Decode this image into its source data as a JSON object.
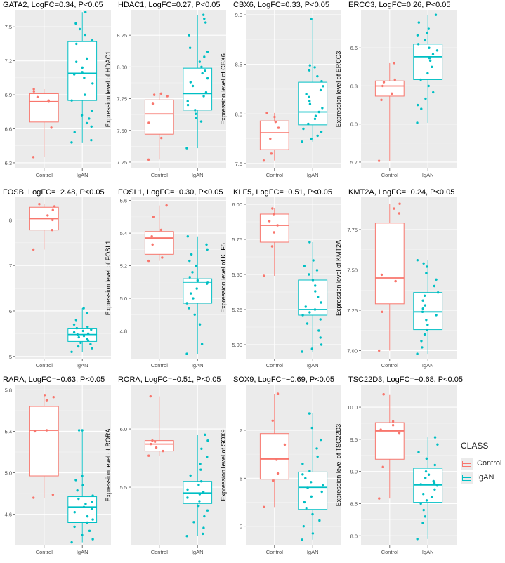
{
  "chart_data": {
    "type": "boxplot",
    "xlabels": [
      "Control",
      "IgAN"
    ],
    "legend": {
      "title": "CLASS",
      "entries": [
        {
          "label": "Control",
          "color": "#F8766D"
        },
        {
          "label": "IgAN",
          "color": "#00BFC4"
        }
      ]
    },
    "panels": [
      {
        "gene": "GATA2",
        "title": "GATA2, LogFC=0.34, P<0.05",
        "ylabel": "Expression level of GATA2",
        "ylim": [
          6.25,
          7.65
        ],
        "ticks": [
          6.3,
          6.6,
          6.9,
          7.2,
          7.5
        ],
        "tick_labels": [
          "6.3",
          "6.6",
          "6.9",
          "7.2",
          "7.5"
        ],
        "groups": [
          {
            "name": "Control",
            "q1": 6.66,
            "median": 6.84,
            "q3": 6.91,
            "wmin": 6.35,
            "wmax": 6.95,
            "points": [
              6.35,
              6.61,
              6.84,
              6.85,
              6.88,
              6.93,
              6.95
            ]
          },
          {
            "name": "IgAN",
            "q1": 6.85,
            "median": 7.09,
            "q3": 7.37,
            "wmin": 6.48,
            "wmax": 7.63,
            "points": [
              6.48,
              6.5,
              6.57,
              6.62,
              6.65,
              6.69,
              6.72,
              6.76,
              6.85,
              6.9,
              7.0,
              7.05,
              7.08,
              7.1,
              7.14,
              7.19,
              7.22,
              7.35,
              7.38,
              7.43,
              7.48,
              7.53,
              7.63
            ]
          }
        ]
      },
      {
        "gene": "HDAC1",
        "title": "HDAC1, LogFC=0.27, P<0.05",
        "ylabel": "Expression level of HDAC1",
        "ylim": [
          7.2,
          8.45
        ],
        "ticks": [
          7.25,
          7.5,
          7.75,
          8.0,
          8.25
        ],
        "tick_labels": [
          "7.25",
          "7.50",
          "7.75",
          "8.00",
          "8.25"
        ],
        "groups": [
          {
            "name": "Control",
            "q1": 7.47,
            "median": 7.63,
            "q3": 7.74,
            "wmin": 7.27,
            "wmax": 7.79,
            "points": [
              7.27,
              7.44,
              7.56,
              7.71,
              7.77,
              7.78,
              7.79
            ]
          },
          {
            "name": "IgAN",
            "q1": 7.66,
            "median": 7.79,
            "q3": 7.99,
            "wmin": 7.36,
            "wmax": 8.41,
            "points": [
              7.36,
              7.57,
              7.6,
              7.63,
              7.66,
              7.7,
              7.73,
              7.77,
              7.8,
              7.85,
              7.88,
              7.91,
              7.95,
              7.97,
              8.0,
              8.04,
              8.08,
              8.12,
              8.15,
              8.25,
              8.35,
              8.38,
              8.41
            ]
          }
        ]
      },
      {
        "gene": "CBX6",
        "title": "CBX6, LogFC=0.33, P<0.05",
        "ylabel": "Expression level of CBX6",
        "ylim": [
          7.45,
          9.05
        ],
        "ticks": [
          7.5,
          8.0,
          8.5,
          9.0
        ],
        "tick_labels": [
          "7.5",
          "8.0",
          "8.5",
          "9.0"
        ],
        "groups": [
          {
            "name": "Control",
            "q1": 7.64,
            "median": 7.81,
            "q3": 7.93,
            "wmin": 7.53,
            "wmax": 8.01,
            "points": [
              7.53,
              7.6,
              7.75,
              7.86,
              7.92,
              7.97,
              8.01
            ]
          },
          {
            "name": "IgAN",
            "q1": 7.89,
            "median": 8.02,
            "q3": 8.32,
            "wmin": 7.72,
            "wmax": 8.96,
            "points": [
              7.72,
              7.75,
              7.78,
              7.82,
              7.85,
              7.9,
              7.95,
              7.98,
              8.02,
              8.06,
              8.1,
              8.13,
              8.17,
              8.2,
              8.24,
              8.28,
              8.33,
              8.38,
              8.44,
              8.47,
              8.49,
              8.96
            ]
          }
        ]
      },
      {
        "gene": "ERCC3",
        "title": "ERCC3, LogFC=0.26, P<0.05",
        "ylabel": "Expression level of ERCC3",
        "ylim": [
          5.65,
          6.9
        ],
        "ticks": [
          5.7,
          6.0,
          6.3,
          6.6
        ],
        "tick_labels": [
          "5.7",
          "6.0",
          "6.3",
          "6.6"
        ],
        "groups": [
          {
            "name": "Control",
            "q1": 6.22,
            "median": 6.3,
            "q3": 6.34,
            "wmin": 5.71,
            "wmax": 6.48,
            "points": [
              5.71,
              6.19,
              6.24,
              6.3,
              6.33,
              6.35,
              6.48
            ]
          },
          {
            "name": "IgAN",
            "q1": 6.35,
            "median": 6.53,
            "q3": 6.63,
            "wmin": 6.01,
            "wmax": 6.86,
            "points": [
              6.01,
              6.12,
              6.15,
              6.2,
              6.25,
              6.3,
              6.35,
              6.4,
              6.45,
              6.5,
              6.52,
              6.55,
              6.58,
              6.6,
              6.63,
              6.66,
              6.7,
              6.72,
              6.75,
              6.8,
              6.86
            ]
          }
        ]
      },
      {
        "gene": "FOSB",
        "title": "FOSB, LogFC=−2.48, P<0.05",
        "ylabel": "Expression level of FOSB",
        "ylim": [
          4.95,
          8.5
        ],
        "ticks": [
          5,
          6,
          7,
          8
        ],
        "tick_labels": [
          "5",
          "6",
          "7",
          "8"
        ],
        "groups": [
          {
            "name": "Control",
            "q1": 7.78,
            "median": 8.03,
            "q3": 8.28,
            "wmin": 7.35,
            "wmax": 8.35,
            "points": [
              7.35,
              7.78,
              8.0,
              8.1,
              8.22,
              8.3,
              8.35
            ]
          },
          {
            "name": "IgAN",
            "q1": 5.33,
            "median": 5.48,
            "q3": 5.62,
            "wmin": 5.1,
            "wmax": 6.06,
            "points": [
              5.1,
              5.18,
              5.22,
              5.27,
              5.3,
              5.35,
              5.38,
              5.42,
              5.45,
              5.48,
              5.5,
              5.53,
              5.56,
              5.59,
              5.62,
              5.65,
              5.7,
              5.8,
              5.95,
              6.06
            ]
          }
        ]
      },
      {
        "gene": "FOSL1",
        "title": "FOSL1, LogFC=−0.30, P<0.05",
        "ylabel": "Expression level of FOSL1",
        "ylim": [
          4.63,
          5.62
        ],
        "ticks": [
          4.8,
          5.0,
          5.2,
          5.4,
          5.6
        ],
        "tick_labels": [
          "4.8",
          "5.0",
          "5.2",
          "5.4",
          "5.6"
        ],
        "groups": [
          {
            "name": "Control",
            "q1": 5.27,
            "median": 5.37,
            "q3": 5.41,
            "wmin": 5.23,
            "wmax": 5.57,
            "points": [
              5.23,
              5.25,
              5.33,
              5.38,
              5.42,
              5.5,
              5.57
            ]
          },
          {
            "name": "IgAN",
            "q1": 4.97,
            "median": 5.1,
            "q3": 5.12,
            "wmin": 4.66,
            "wmax": 5.38,
            "points": [
              4.66,
              4.72,
              4.84,
              4.9,
              4.94,
              4.97,
              5.0,
              5.03,
              5.06,
              5.09,
              5.1,
              5.11,
              5.13,
              5.16,
              5.2,
              5.23,
              5.27,
              5.3,
              5.33,
              5.38
            ]
          }
        ]
      },
      {
        "gene": "KLF5",
        "title": "KLF5, LogFC=−0.51, P<0.05",
        "ylabel": "Expression level of KLF5",
        "ylim": [
          4.9,
          6.05
        ],
        "ticks": [
          5.0,
          5.25,
          5.5,
          5.75,
          6.0
        ],
        "tick_labels": [
          "5.00",
          "5.25",
          "5.50",
          "5.75",
          "6.00"
        ],
        "groups": [
          {
            "name": "Control",
            "q1": 5.73,
            "median": 5.85,
            "q3": 5.93,
            "wmin": 5.49,
            "wmax": 5.97,
            "points": [
              5.49,
              5.7,
              5.8,
              5.85,
              5.88,
              5.93,
              5.97
            ]
          },
          {
            "name": "IgAN",
            "q1": 5.21,
            "median": 5.25,
            "q3": 5.46,
            "wmin": 4.95,
            "wmax": 5.73,
            "points": [
              4.95,
              4.97,
              5.0,
              5.05,
              5.1,
              5.15,
              5.18,
              5.21,
              5.23,
              5.25,
              5.27,
              5.3,
              5.34,
              5.38,
              5.42,
              5.46,
              5.5,
              5.53,
              5.56,
              5.6,
              5.73
            ]
          }
        ]
      },
      {
        "gene": "KMT2A",
        "title": "KMT2A, LogFC=−0.24, P<0.05",
        "ylabel": "Expression level of KMT2A",
        "ylim": [
          6.95,
          7.95
        ],
        "ticks": [
          7.0,
          7.25,
          7.5,
          7.75
        ],
        "tick_labels": [
          "7.00",
          "7.25",
          "7.50",
          "7.75"
        ],
        "groups": [
          {
            "name": "Control",
            "q1": 7.29,
            "median": 7.45,
            "q3": 7.79,
            "wmin": 7.0,
            "wmax": 7.91,
            "points": [
              7.0,
              7.24,
              7.43,
              7.47,
              7.85,
              7.88,
              7.91
            ]
          },
          {
            "name": "IgAN",
            "q1": 7.13,
            "median": 7.24,
            "q3": 7.36,
            "wmin": 6.98,
            "wmax": 7.56,
            "points": [
              6.98,
              7.02,
              7.06,
              7.1,
              7.13,
              7.16,
              7.19,
              7.22,
              7.24,
              7.26,
              7.28,
              7.31,
              7.34,
              7.36,
              7.4,
              7.44,
              7.48,
              7.52,
              7.54,
              7.56
            ]
          }
        ]
      },
      {
        "gene": "RARA",
        "title": "RARA, LogFC=−0.63, P<0.05",
        "ylabel": "Expression level of RARA",
        "ylim": [
          4.3,
          5.85
        ],
        "ticks": [
          4.6,
          5.0,
          5.4,
          5.8
        ],
        "tick_labels": [
          "4.6",
          "5.0",
          "5.4",
          "5.8"
        ],
        "groups": [
          {
            "name": "Control",
            "q1": 4.97,
            "median": 5.41,
            "q3": 5.64,
            "wmin": 4.76,
            "wmax": 5.75,
            "points": [
              4.76,
              4.79,
              5.4,
              5.41,
              5.7,
              5.73,
              5.75
            ]
          },
          {
            "name": "IgAN",
            "q1": 4.52,
            "median": 4.67,
            "q3": 4.77,
            "wmin": 4.33,
            "wmax": 5.41,
            "points": [
              4.33,
              4.36,
              4.4,
              4.44,
              4.48,
              4.52,
              4.55,
              4.58,
              4.62,
              4.65,
              4.67,
              4.7,
              4.72,
              4.75,
              4.78,
              4.83,
              4.88,
              4.93,
              4.97,
              5.41,
              5.41
            ]
          }
        ]
      },
      {
        "gene": "RORA",
        "title": "RORA, LogFC=−0.51, P<0.05",
        "ylabel": "Expression level of RORA",
        "ylim": [
          5.0,
          6.38
        ],
        "ticks": [
          5.5,
          6.0
        ],
        "tick_labels": [
          "5.5",
          "6.0"
        ],
        "groups": [
          {
            "name": "Control",
            "q1": 5.81,
            "median": 5.87,
            "q3": 5.9,
            "wmin": 5.77,
            "wmax": 6.28,
            "points": [
              5.77,
              5.81,
              5.84,
              5.87,
              5.89,
              5.9,
              6.28
            ]
          },
          {
            "name": "IgAN",
            "q1": 5.36,
            "median": 5.45,
            "q3": 5.55,
            "wmin": 5.08,
            "wmax": 5.95,
            "points": [
              5.08,
              5.1,
              5.15,
              5.2,
              5.25,
              5.3,
              5.34,
              5.38,
              5.41,
              5.44,
              5.46,
              5.48,
              5.52,
              5.55,
              5.6,
              5.65,
              5.7,
              5.76,
              5.83,
              5.9,
              5.95
            ]
          }
        ]
      },
      {
        "gene": "SOX9",
        "title": "SOX9, LogFC=−0.69, P<0.05",
        "ylabel": "Expression level of SOX9",
        "ylim": [
          4.6,
          7.95
        ],
        "ticks": [
          5,
          6,
          7
        ],
        "tick_labels": [
          "5",
          "6",
          "7"
        ],
        "groups": [
          {
            "name": "Control",
            "q1": 5.98,
            "median": 6.4,
            "q3": 6.93,
            "wmin": 5.4,
            "wmax": 7.76,
            "points": [
              5.4,
              5.95,
              6.1,
              6.4,
              6.7,
              7.2,
              7.76
            ]
          },
          {
            "name": "IgAN",
            "q1": 5.35,
            "median": 5.81,
            "q3": 6.13,
            "wmin": 4.72,
            "wmax": 7.35,
            "points": [
              4.72,
              4.85,
              5.0,
              5.12,
              5.25,
              5.38,
              5.5,
              5.62,
              5.72,
              5.8,
              5.85,
              5.92,
              6.0,
              6.08,
              6.15,
              6.3,
              6.45,
              6.62,
              6.8,
              7.05,
              7.35,
              7.35
            ]
          }
        ]
      },
      {
        "gene": "TSC22D3",
        "title": "TSC22D3, LogFC=−0.68, P<0.05",
        "ylabel": "Expression level of TSC22D3",
        "ylim": [
          7.85,
          10.35
        ],
        "ticks": [
          8.0,
          8.5,
          9.0,
          9.5,
          10.0
        ],
        "tick_labels": [
          "8.0",
          "8.5",
          "9.0",
          "9.5",
          "10.0"
        ],
        "groups": [
          {
            "name": "Control",
            "q1": 9.19,
            "median": 9.63,
            "q3": 9.76,
            "wmin": 8.58,
            "wmax": 10.2,
            "points": [
              8.58,
              9.07,
              9.6,
              9.65,
              9.72,
              9.78,
              10.2
            ]
          },
          {
            "name": "IgAN",
            "q1": 8.52,
            "median": 8.79,
            "q3": 9.05,
            "wmin": 7.95,
            "wmax": 9.53,
            "points": [
              7.95,
              8.2,
              8.3,
              8.4,
              8.5,
              8.55,
              8.6,
              8.65,
              8.72,
              8.78,
              8.8,
              8.82,
              8.85,
              8.9,
              8.95,
              9.0,
              9.1,
              9.2,
              9.3,
              9.42,
              9.53
            ]
          }
        ]
      }
    ]
  }
}
